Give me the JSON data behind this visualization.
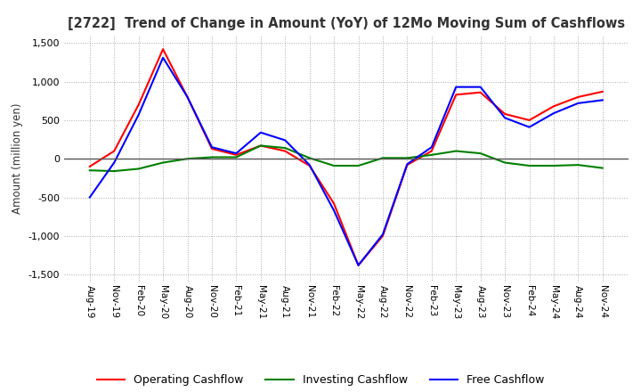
{
  "title": "[2722]  Trend of Change in Amount (YoY) of 12Mo Moving Sum of Cashflows",
  "ylabel": "Amount (million yen)",
  "ylim": [
    -1600,
    1600
  ],
  "yticks": [
    -1500,
    -1000,
    -500,
    0,
    500,
    1000,
    1500
  ],
  "x_labels": [
    "Aug-19",
    "Nov-19",
    "Feb-20",
    "May-20",
    "Aug-20",
    "Nov-20",
    "Feb-21",
    "May-21",
    "Aug-21",
    "Nov-21",
    "Feb-22",
    "May-22",
    "Aug-22",
    "Nov-22",
    "Feb-23",
    "May-23",
    "Aug-23",
    "Nov-23",
    "Feb-24",
    "May-24",
    "Aug-24",
    "Nov-24"
  ],
  "operating": [
    -100,
    100,
    700,
    1420,
    800,
    130,
    50,
    170,
    100,
    -90,
    -580,
    -1380,
    -1000,
    -80,
    100,
    830,
    860,
    580,
    500,
    680,
    800,
    870
  ],
  "investing": [
    -150,
    -160,
    -130,
    -50,
    0,
    20,
    20,
    170,
    140,
    10,
    -90,
    -90,
    10,
    10,
    50,
    100,
    70,
    -50,
    -90,
    -90,
    -80,
    -120
  ],
  "free": [
    -500,
    -50,
    570,
    1310,
    800,
    150,
    70,
    340,
    240,
    -80,
    -670,
    -1380,
    -980,
    -70,
    150,
    930,
    930,
    530,
    410,
    590,
    720,
    760
  ],
  "op_color": "#ff0000",
  "inv_color": "#008000",
  "free_color": "#0000ff",
  "background": "#ffffff",
  "grid_color": "#aaaaaa",
  "title_color": "#333333",
  "zero_line_color": "#555555"
}
